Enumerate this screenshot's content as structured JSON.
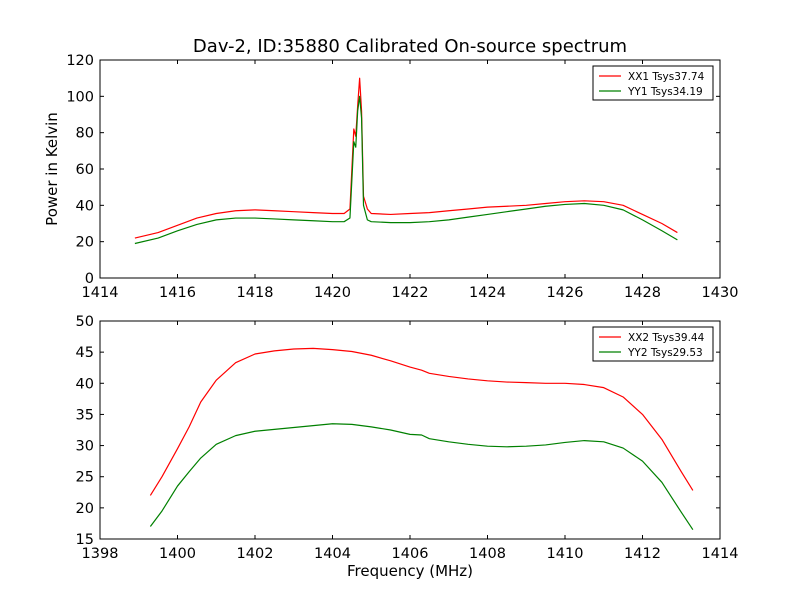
{
  "chart_data": [
    {
      "type": "line",
      "title": "Dav-2, ID:35880 Calibrated On-source spectrum",
      "xlabel": "",
      "ylabel": "Power in Kelvin",
      "xlim": [
        1414,
        1430
      ],
      "ylim": [
        0,
        120
      ],
      "xticks": [
        "1414",
        "1416",
        "1418",
        "1420",
        "1422",
        "1424",
        "1426",
        "1428",
        "1430"
      ],
      "yticks": [
        "0",
        "20",
        "40",
        "60",
        "80",
        "100",
        "120"
      ],
      "grid": false,
      "legend_position": "top-right",
      "series": [
        {
          "name": "XX1 Tsys37.74",
          "color": "#ff0000",
          "points": [
            [
              1414.9,
              22
            ],
            [
              1415.5,
              25
            ],
            [
              1416,
              29
            ],
            [
              1416.5,
              33
            ],
            [
              1417,
              35.5
            ],
            [
              1417.5,
              37
            ],
            [
              1418,
              37.5
            ],
            [
              1418.5,
              37
            ],
            [
              1419,
              36.5
            ],
            [
              1419.5,
              36
            ],
            [
              1420,
              35.5
            ],
            [
              1420.3,
              35.5
            ],
            [
              1420.45,
              38
            ],
            [
              1420.55,
              82
            ],
            [
              1420.6,
              78
            ],
            [
              1420.65,
              95
            ],
            [
              1420.7,
              110
            ],
            [
              1420.75,
              92
            ],
            [
              1420.8,
              45
            ],
            [
              1420.9,
              38
            ],
            [
              1421,
              35.5
            ],
            [
              1421.5,
              35
            ],
            [
              1422,
              35.5
            ],
            [
              1422.5,
              36
            ],
            [
              1423,
              37
            ],
            [
              1423.5,
              38
            ],
            [
              1424,
              39
            ],
            [
              1424.5,
              39.5
            ],
            [
              1425,
              40
            ],
            [
              1425.5,
              41
            ],
            [
              1426,
              42
            ],
            [
              1426.5,
              42.5
            ],
            [
              1427,
              42
            ],
            [
              1427.5,
              40
            ],
            [
              1428,
              35
            ],
            [
              1428.5,
              30
            ],
            [
              1428.9,
              25
            ]
          ]
        },
        {
          "name": "YY1 Tsys34.19",
          "color": "#008000",
          "points": [
            [
              1414.9,
              19
            ],
            [
              1415.5,
              22
            ],
            [
              1416,
              26
            ],
            [
              1416.5,
              29.5
            ],
            [
              1417,
              32
            ],
            [
              1417.5,
              33
            ],
            [
              1418,
              33
            ],
            [
              1418.5,
              32.5
            ],
            [
              1419,
              32
            ],
            [
              1419.5,
              31.5
            ],
            [
              1420,
              31
            ],
            [
              1420.3,
              31
            ],
            [
              1420.45,
              33
            ],
            [
              1420.55,
              75
            ],
            [
              1420.6,
              72
            ],
            [
              1420.65,
              92
            ],
            [
              1420.7,
              100
            ],
            [
              1420.75,
              88
            ],
            [
              1420.8,
              40
            ],
            [
              1420.9,
              32
            ],
            [
              1421,
              31
            ],
            [
              1421.5,
              30.5
            ],
            [
              1422,
              30.5
            ],
            [
              1422.5,
              31
            ],
            [
              1423,
              32
            ],
            [
              1423.5,
              33.5
            ],
            [
              1424,
              35
            ],
            [
              1424.5,
              36.5
            ],
            [
              1425,
              38
            ],
            [
              1425.5,
              39.5
            ],
            [
              1426,
              40.5
            ],
            [
              1426.5,
              41
            ],
            [
              1427,
              40
            ],
            [
              1427.5,
              37.5
            ],
            [
              1428,
              32
            ],
            [
              1428.5,
              26
            ],
            [
              1428.9,
              21
            ]
          ]
        }
      ]
    },
    {
      "type": "line",
      "title": "",
      "xlabel": "Frequency (MHz)",
      "ylabel": "",
      "xlim": [
        1398,
        1414
      ],
      "ylim": [
        15,
        50
      ],
      "xticks": [
        "1398",
        "1400",
        "1402",
        "1404",
        "1406",
        "1408",
        "1410",
        "1412",
        "1414"
      ],
      "yticks": [
        "15",
        "20",
        "25",
        "30",
        "35",
        "40",
        "45",
        "50"
      ],
      "grid": false,
      "legend_position": "top-right",
      "series": [
        {
          "name": "XX2 Tsys39.44",
          "color": "#ff0000",
          "points": [
            [
              1399.3,
              22
            ],
            [
              1399.6,
              25
            ],
            [
              1400,
              29.5
            ],
            [
              1400.3,
              33
            ],
            [
              1400.6,
              37
            ],
            [
              1401,
              40.5
            ],
            [
              1401.5,
              43.3
            ],
            [
              1402,
              44.7
            ],
            [
              1402.5,
              45.2
            ],
            [
              1403,
              45.5
            ],
            [
              1403.5,
              45.6
            ],
            [
              1404,
              45.4
            ],
            [
              1404.5,
              45.1
            ],
            [
              1405,
              44.5
            ],
            [
              1405.5,
              43.6
            ],
            [
              1406,
              42.6
            ],
            [
              1406.3,
              42.1
            ],
            [
              1406.5,
              41.6
            ],
            [
              1407,
              41.1
            ],
            [
              1407.5,
              40.7
            ],
            [
              1408,
              40.4
            ],
            [
              1408.5,
              40.2
            ],
            [
              1409,
              40.1
            ],
            [
              1409.5,
              40
            ],
            [
              1410,
              40
            ],
            [
              1410.5,
              39.8
            ],
            [
              1411,
              39.3
            ],
            [
              1411.5,
              37.8
            ],
            [
              1412,
              35
            ],
            [
              1412.5,
              31
            ],
            [
              1413,
              25.8
            ],
            [
              1413.3,
              22.8
            ]
          ]
        },
        {
          "name": "YY2 Tsys29.53",
          "color": "#008000",
          "points": [
            [
              1399.3,
              17
            ],
            [
              1399.6,
              19.5
            ],
            [
              1400,
              23.5
            ],
            [
              1400.3,
              25.8
            ],
            [
              1400.6,
              28
            ],
            [
              1401,
              30.2
            ],
            [
              1401.5,
              31.6
            ],
            [
              1402,
              32.3
            ],
            [
              1402.5,
              32.6
            ],
            [
              1403,
              32.9
            ],
            [
              1403.5,
              33.2
            ],
            [
              1404,
              33.5
            ],
            [
              1404.5,
              33.4
            ],
            [
              1405,
              33
            ],
            [
              1405.5,
              32.5
            ],
            [
              1406,
              31.8
            ],
            [
              1406.3,
              31.7
            ],
            [
              1406.5,
              31.1
            ],
            [
              1407,
              30.6
            ],
            [
              1407.5,
              30.2
            ],
            [
              1408,
              29.9
            ],
            [
              1408.5,
              29.8
            ],
            [
              1409,
              29.9
            ],
            [
              1409.5,
              30.1
            ],
            [
              1410,
              30.5
            ],
            [
              1410.5,
              30.8
            ],
            [
              1411,
              30.6
            ],
            [
              1411.5,
              29.6
            ],
            [
              1412,
              27.5
            ],
            [
              1412.5,
              24.1
            ],
            [
              1413,
              19.3
            ],
            [
              1413.3,
              16.5
            ]
          ]
        }
      ]
    }
  ]
}
